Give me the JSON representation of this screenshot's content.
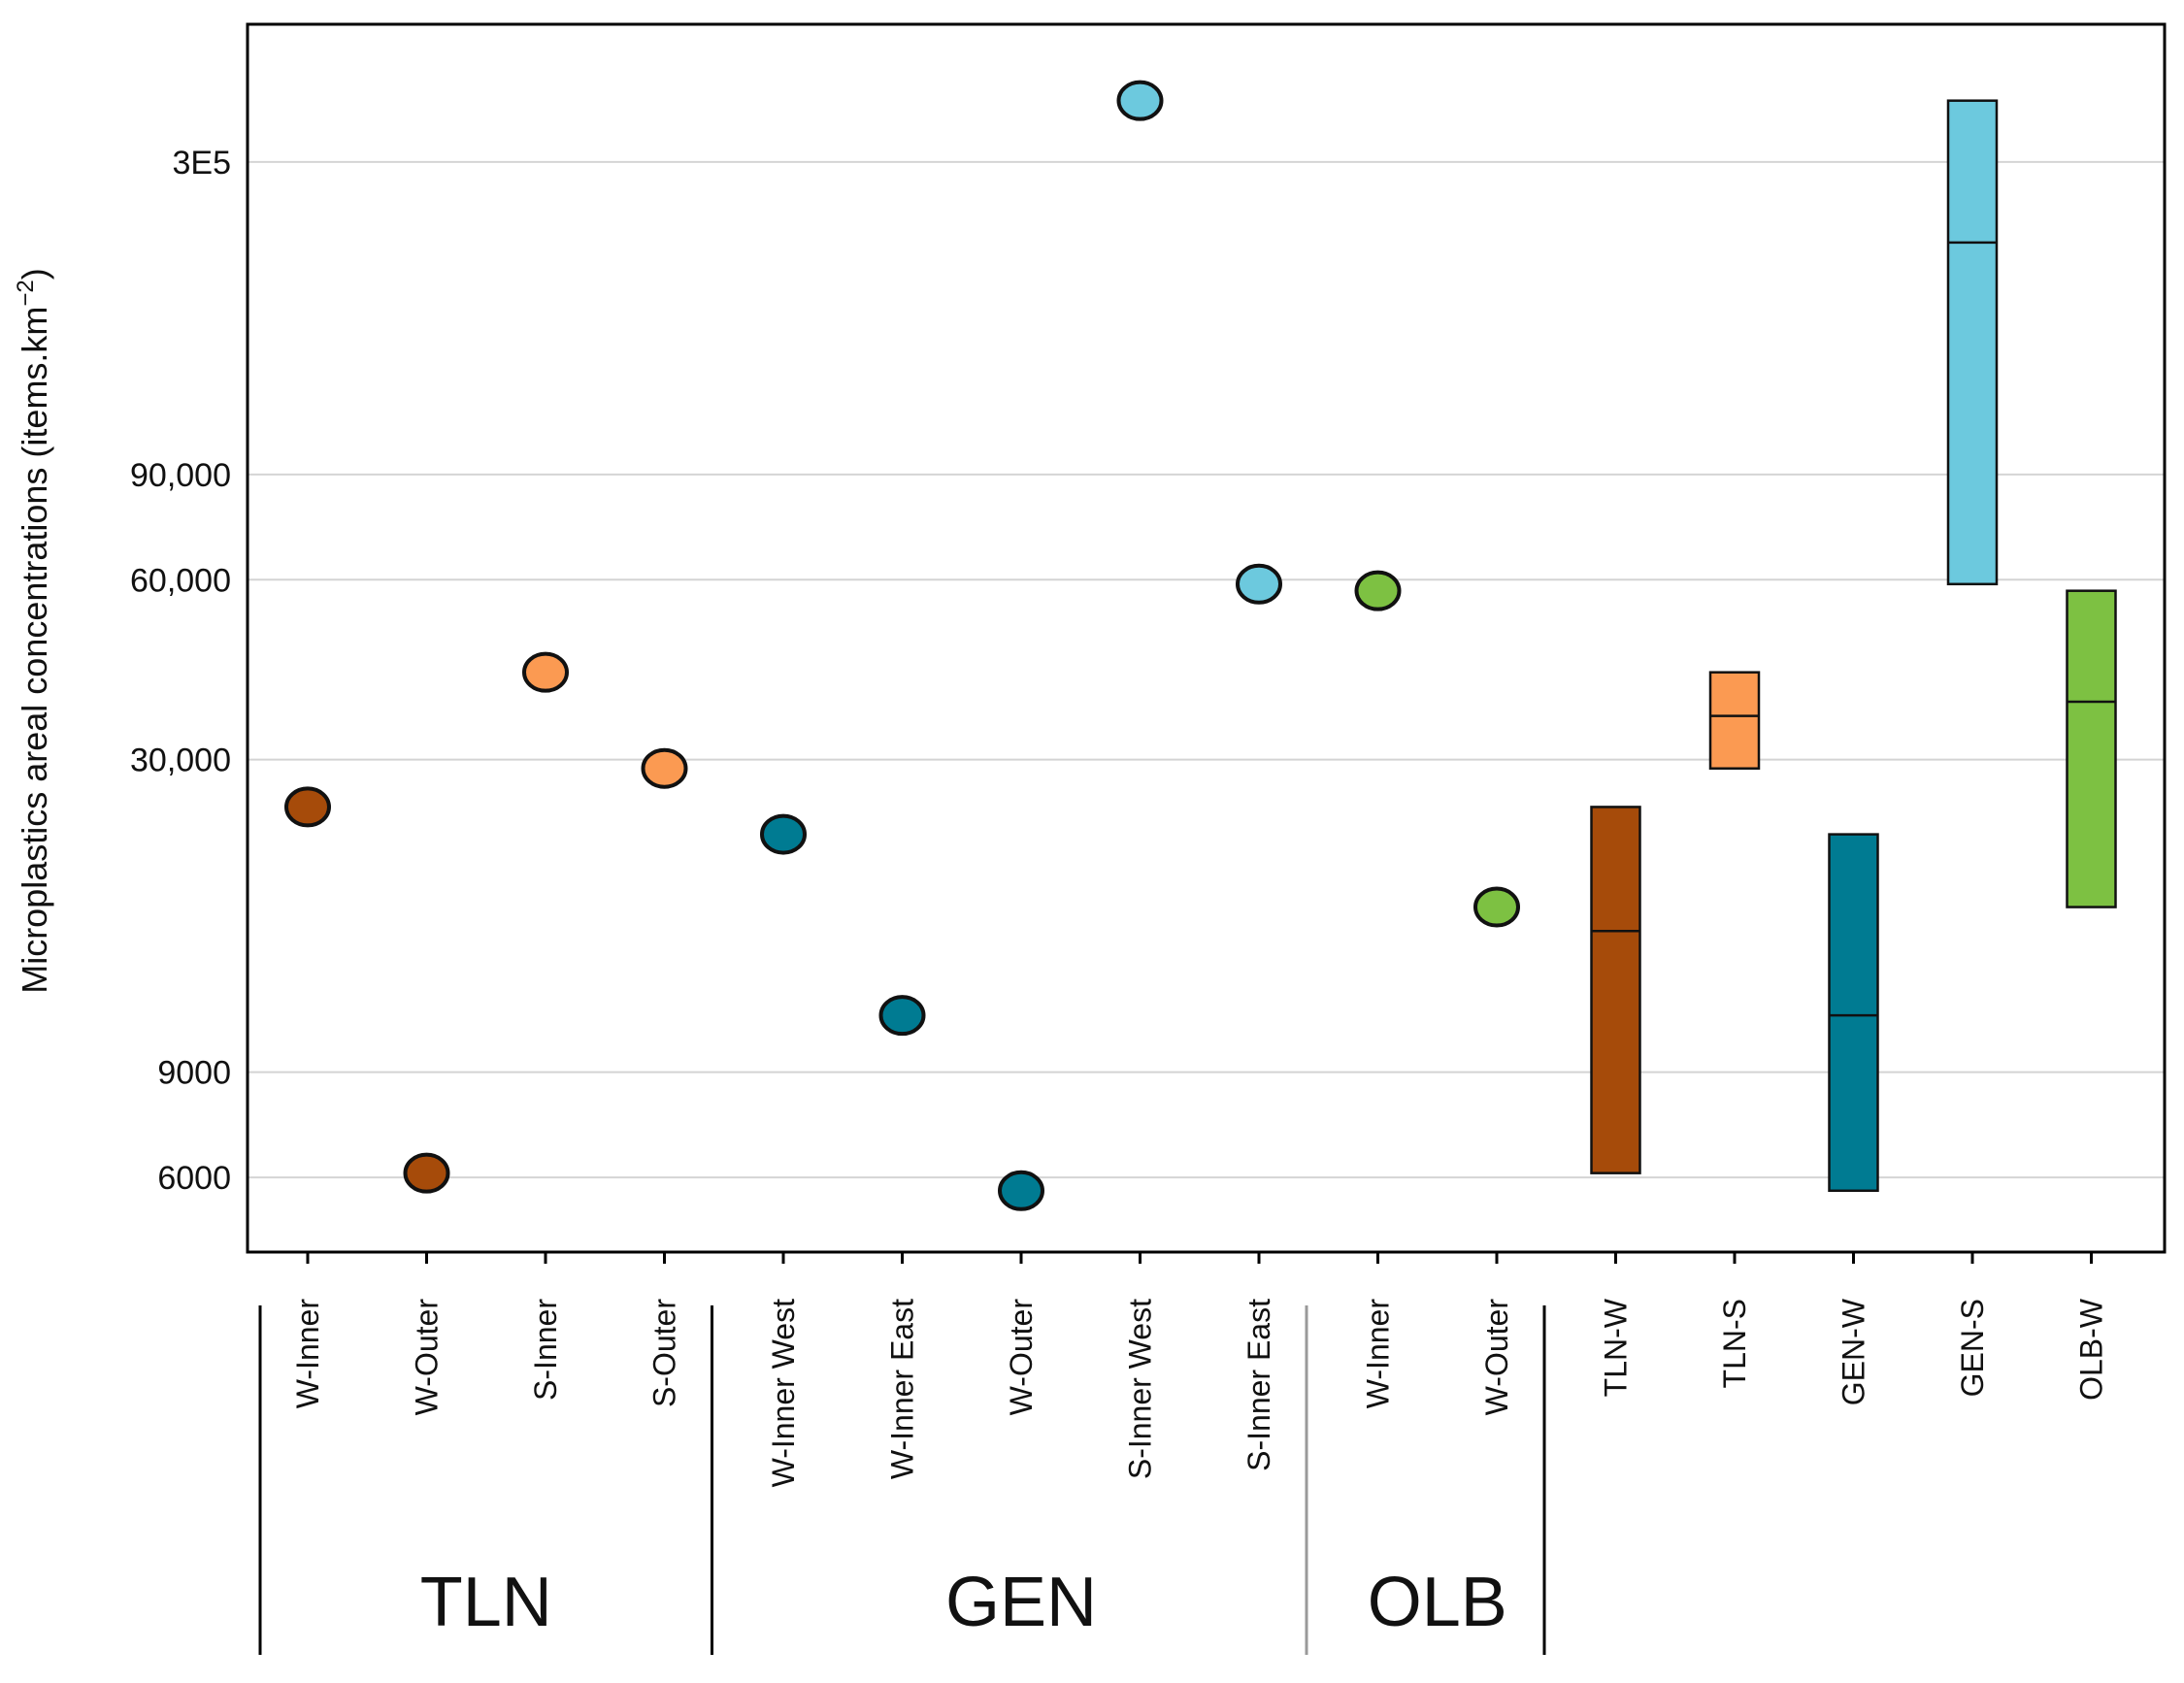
{
  "chart_data": {
    "type": "scatter",
    "ylabel_prefix": "Microplastics areal concentrations (items.km",
    "ylabel_sup": "−2",
    "ylabel_suffix": ")",
    "yscale": "log",
    "ylim": [
      4500,
      510000
    ],
    "yticks": [
      {
        "value": 6000,
        "label": "6000"
      },
      {
        "value": 9000,
        "label": "9000"
      },
      {
        "value": 30000,
        "label": "30,000"
      },
      {
        "value": 60000,
        "label": "60,000"
      },
      {
        "value": 90000,
        "label": "90,000"
      },
      {
        "value": 300000,
        "label": "3E5"
      }
    ],
    "colors": {
      "TLN-W": "#A64B0A",
      "TLN-S": "#FB9A52",
      "GEN-W": "#007B92",
      "GEN-S": "#6CC9DE",
      "OLB-W": "#7DC142"
    },
    "points": [
      {
        "label": "W-Inner",
        "group": "TLN",
        "color_key": "TLN-W",
        "value": 25000
      },
      {
        "label": "W-Outer",
        "group": "TLN",
        "color_key": "TLN-W",
        "value": 6100
      },
      {
        "label": "S-Inner",
        "group": "TLN",
        "color_key": "TLN-S",
        "value": 42000
      },
      {
        "label": "S-Outer",
        "group": "TLN",
        "color_key": "TLN-S",
        "value": 29000
      },
      {
        "label": "W-Inner West",
        "group": "GEN",
        "color_key": "GEN-W",
        "value": 22500
      },
      {
        "label": "W-Inner East",
        "group": "GEN",
        "color_key": "GEN-W",
        "value": 11200
      },
      {
        "label": "W-Outer",
        "group": "GEN",
        "color_key": "GEN-W",
        "value": 5700
      },
      {
        "label": "S-Inner West",
        "group": "GEN",
        "color_key": "GEN-S",
        "value": 380000
      },
      {
        "label": "S-Inner East",
        "group": "GEN",
        "color_key": "GEN-S",
        "value": 59000
      },
      {
        "label": "W-Inner",
        "group": "OLB",
        "color_key": "OLB-W",
        "value": 57500
      },
      {
        "label": "W-Outer",
        "group": "OLB",
        "color_key": "OLB-W",
        "value": 17000
      }
    ],
    "boxes": [
      {
        "label": "TLN-W",
        "color_key": "TLN-W",
        "low": 6100,
        "median": 15500,
        "high": 25000
      },
      {
        "label": "TLN-S",
        "color_key": "TLN-S",
        "low": 29000,
        "median": 35500,
        "high": 42000
      },
      {
        "label": "GEN-W",
        "color_key": "GEN-W",
        "low": 5700,
        "median": 11200,
        "high": 22500
      },
      {
        "label": "GEN-S",
        "color_key": "GEN-S",
        "low": 59000,
        "median": 220000,
        "high": 380000
      },
      {
        "label": "OLB-W",
        "color_key": "OLB-W",
        "low": 17000,
        "median": 37500,
        "high": 57500
      }
    ],
    "groups": [
      {
        "label": "TLN",
        "first": 0,
        "last": 3
      },
      {
        "label": "GEN",
        "first": 4,
        "last": 8
      },
      {
        "label": "OLB",
        "first": 9,
        "last": 10
      }
    ],
    "grid": true
  }
}
